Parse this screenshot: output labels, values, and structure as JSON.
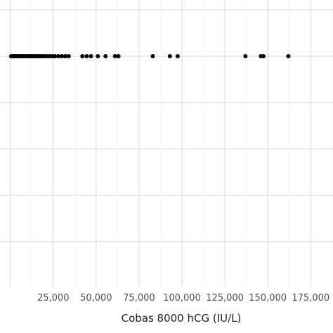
{
  "chart_data": {
    "type": "scatter",
    "title": "",
    "xlabel": "Cobas 8000 hCG (IU/L)",
    "ylabel": "",
    "xlim": [
      -6000,
      188000
    ],
    "x_ticks": [
      25000,
      50000,
      75000,
      100000,
      125000,
      150000,
      175000
    ],
    "x_tick_labels": [
      "25,000",
      "50,000",
      "75,000",
      "100,000",
      "125,000",
      "150,000",
      "175,000"
    ],
    "grid": true,
    "legend": "none",
    "colors": {
      "points": "#000000",
      "grid_major": "#d9d9d9",
      "grid_minor": "#ececec",
      "axis_title": "#222222",
      "tick_label": "#4d4d4d"
    },
    "series": [
      {
        "x": [
          500,
          1200,
          2000,
          2800,
          3600,
          4400,
          5200,
          6000,
          7000,
          8000,
          9000,
          10000,
          11000,
          12000,
          13000,
          14000,
          15000,
          16000,
          17000,
          18000,
          19000,
          20000,
          21500,
          23000,
          24500,
          26000,
          28000,
          30000,
          32000,
          34000,
          42000,
          44500,
          47000,
          51000,
          55500,
          61000,
          63000,
          83000,
          93000,
          97500,
          137000,
          146000,
          147500,
          162000
        ]
      }
    ]
  }
}
